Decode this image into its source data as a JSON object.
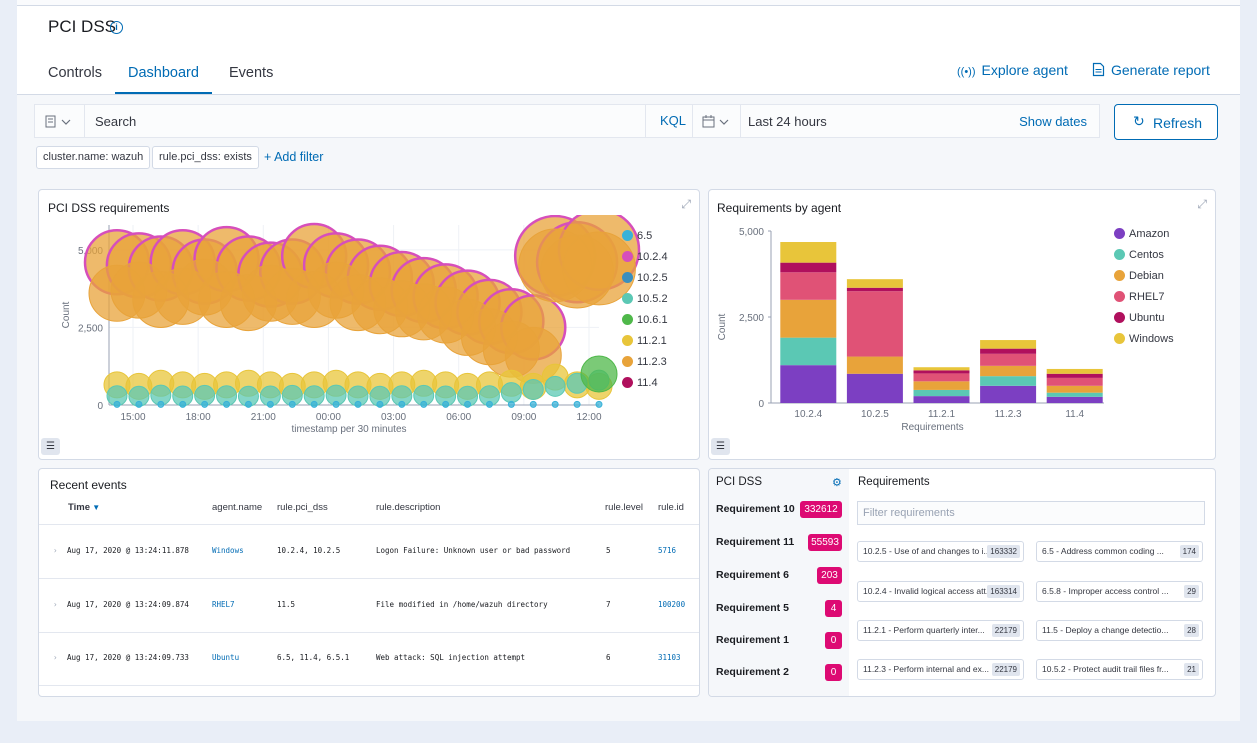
{
  "page_title": "PCI DSS",
  "tabs": [
    {
      "label": "Controls"
    },
    {
      "label": "Dashboard"
    },
    {
      "label": "Events"
    }
  ],
  "header_links": {
    "explore": "Explore agent",
    "report": "Generate report"
  },
  "search": {
    "placeholder": "Search",
    "kql": "KQL"
  },
  "date": {
    "range": "Last 24 hours",
    "show_dates": "Show dates"
  },
  "refresh_label": "Refresh",
  "filters": [
    "cluster.name: wazuh",
    "rule.pci_dss: exists"
  ],
  "add_filter": "+ Add filter",
  "panel1": {
    "title": "PCI DSS requirements",
    "xlabel": "timestamp per 30 minutes",
    "ylabel": "Count"
  },
  "panel2": {
    "title": "Requirements by agent",
    "xlabel": "Requirements",
    "ylabel": "Count"
  },
  "chart_data": [
    {
      "type": "scatter",
      "title": "PCI DSS requirements",
      "xlabel": "timestamp per 30 minutes",
      "ylabel": "Count",
      "x_ticks": [
        "15:00",
        "18:00",
        "21:00",
        "00:00",
        "03:00",
        "06:00",
        "09:00",
        "12:00"
      ],
      "y_ticks": [
        "0",
        "2,500",
        "5,000"
      ],
      "ylim": [
        0,
        5800
      ],
      "legend": [
        "6.5",
        "10.2.4",
        "10.2.5",
        "10.5.2",
        "10.6.1",
        "11.2.1",
        "11.2.3",
        "11.4"
      ],
      "colors": {
        "6.5": "#38b2d8",
        "10.2.4": "#d64fbb",
        "10.2.5": "#3a8fbd",
        "10.5.2": "#5bc8b4",
        "10.6.1": "#4fb84a",
        "11.2.1": "#e8c53a",
        "11.2.3": "#e8a33a",
        "11.4": "#b0105d"
      },
      "series": [
        {
          "name": "10.2.4",
          "values": [
            4600,
            4500,
            4400,
            4600,
            4300,
            4700,
            4400,
            4200,
            4300,
            4800,
            4500,
            4300,
            4100,
            3900,
            3700,
            3500,
            3300,
            3000,
            2700,
            2500,
            4800,
            4600,
            5000
          ]
        },
        {
          "name": "11.2.3",
          "values": [
            3600,
            3700,
            3400,
            3500,
            3800,
            3400,
            3300,
            3600,
            3500,
            3400,
            3700,
            3300,
            3200,
            3100,
            3000,
            2900,
            2500,
            2200,
            1800,
            1600,
            4500,
            4300,
            4400
          ]
        },
        {
          "name": "11.2.1",
          "values": [
            650,
            600,
            700,
            650,
            600,
            650,
            700,
            650,
            600,
            650,
            700,
            650,
            600,
            650,
            700,
            650,
            600,
            650,
            700,
            600,
            900,
            650,
            600
          ]
        },
        {
          "name": "10.5.2",
          "values": [
            300,
            280,
            320,
            290,
            310,
            300,
            280,
            290,
            310,
            300,
            320,
            290,
            280,
            300,
            310,
            290,
            280,
            300,
            400,
            500,
            600,
            700,
            800
          ]
        },
        {
          "name": "10.6.1",
          "values": [
            0,
            0,
            0,
            0,
            0,
            0,
            0,
            0,
            0,
            0,
            0,
            0,
            0,
            0,
            0,
            0,
            0,
            0,
            0,
            0,
            0,
            0,
            1000
          ]
        },
        {
          "name": "6.5",
          "values": [
            20,
            20,
            20,
            20,
            20,
            20,
            20,
            20,
            20,
            20,
            20,
            20,
            20,
            20,
            20,
            20,
            20,
            20,
            20,
            20,
            20,
            20,
            20
          ]
        }
      ]
    },
    {
      "type": "bar",
      "title": "Requirements by agent",
      "xlabel": "Requirements",
      "ylabel": "Count",
      "categories": [
        "10.2.4",
        "10.2.5",
        "11.2.1",
        "11.2.3",
        "11.4"
      ],
      "y_ticks": [
        "0",
        "2,500",
        "5,000"
      ],
      "ylim": [
        0,
        5000
      ],
      "series": [
        {
          "name": "Amazon",
          "color": "#7c3fc2",
          "values": [
            1100,
            850,
            200,
            500,
            180
          ]
        },
        {
          "name": "Centos",
          "color": "#5bc8b4",
          "values": [
            800,
            0,
            180,
            280,
            120
          ]
        },
        {
          "name": "Debian",
          "color": "#e8a33a",
          "values": [
            1100,
            500,
            250,
            300,
            200
          ]
        },
        {
          "name": "RHEL7",
          "color": "#e05276",
          "values": [
            800,
            1900,
            230,
            350,
            230
          ]
        },
        {
          "name": "Ubuntu",
          "color": "#b0105d",
          "values": [
            280,
            100,
            90,
            150,
            120
          ]
        },
        {
          "name": "Windows",
          "color": "#e8c53a",
          "values": [
            600,
            250,
            90,
            250,
            140
          ]
        }
      ]
    }
  ],
  "events": {
    "title": "Recent events",
    "columns": [
      "Time",
      "agent.name",
      "rule.pci_dss",
      "rule.description",
      "rule.level",
      "rule.id"
    ],
    "rows": [
      {
        "time": "Aug 17, 2020 @ 13:24:11.878",
        "agent": "Windows",
        "pci": "10.2.4, 10.2.5",
        "desc": "Logon Failure: Unknown user or bad password",
        "level": "5",
        "id": "5716"
      },
      {
        "time": "Aug 17, 2020 @ 13:24:09.874",
        "agent": "RHEL7",
        "pci": "11.5",
        "desc": "File modified in /home/wazuh directory",
        "level": "7",
        "id": "100200"
      },
      {
        "time": "Aug 17, 2020 @ 13:24:09.733",
        "agent": "Ubuntu",
        "pci": "6.5, 11.4, 6.5.1",
        "desc": "Web attack: SQL injection attempt",
        "level": "6",
        "id": "31103"
      }
    ]
  },
  "pci_panel": {
    "title": "PCI DSS",
    "requirements": [
      {
        "label": "Requirement 10",
        "count": "332612"
      },
      {
        "label": "Requirement 11",
        "count": "55593"
      },
      {
        "label": "Requirement 6",
        "count": "203"
      },
      {
        "label": "Requirement 5",
        "count": "4"
      },
      {
        "label": "Requirement 1",
        "count": "0"
      },
      {
        "label": "Requirement 2",
        "count": "0"
      }
    ],
    "req_title": "Requirements",
    "filter_placeholder": "Filter requirements",
    "cards": [
      {
        "text": "10.2.5 - Use of and changes to i...",
        "count": "163332"
      },
      {
        "text": "6.5 - Address common coding ...",
        "count": "174"
      },
      {
        "text": "10.2.4 - Invalid logical access att...",
        "count": "163314"
      },
      {
        "text": "6.5.8 - Improper access control ...",
        "count": "29"
      },
      {
        "text": "11.2.1 - Perform quarterly inter...",
        "count": "22179"
      },
      {
        "text": "11.5 - Deploy a change detectio...",
        "count": "28"
      },
      {
        "text": "11.2.3 - Perform internal and ex...",
        "count": "22179"
      },
      {
        "text": "10.5.2 - Protect audit trail files fr...",
        "count": "21"
      }
    ]
  }
}
